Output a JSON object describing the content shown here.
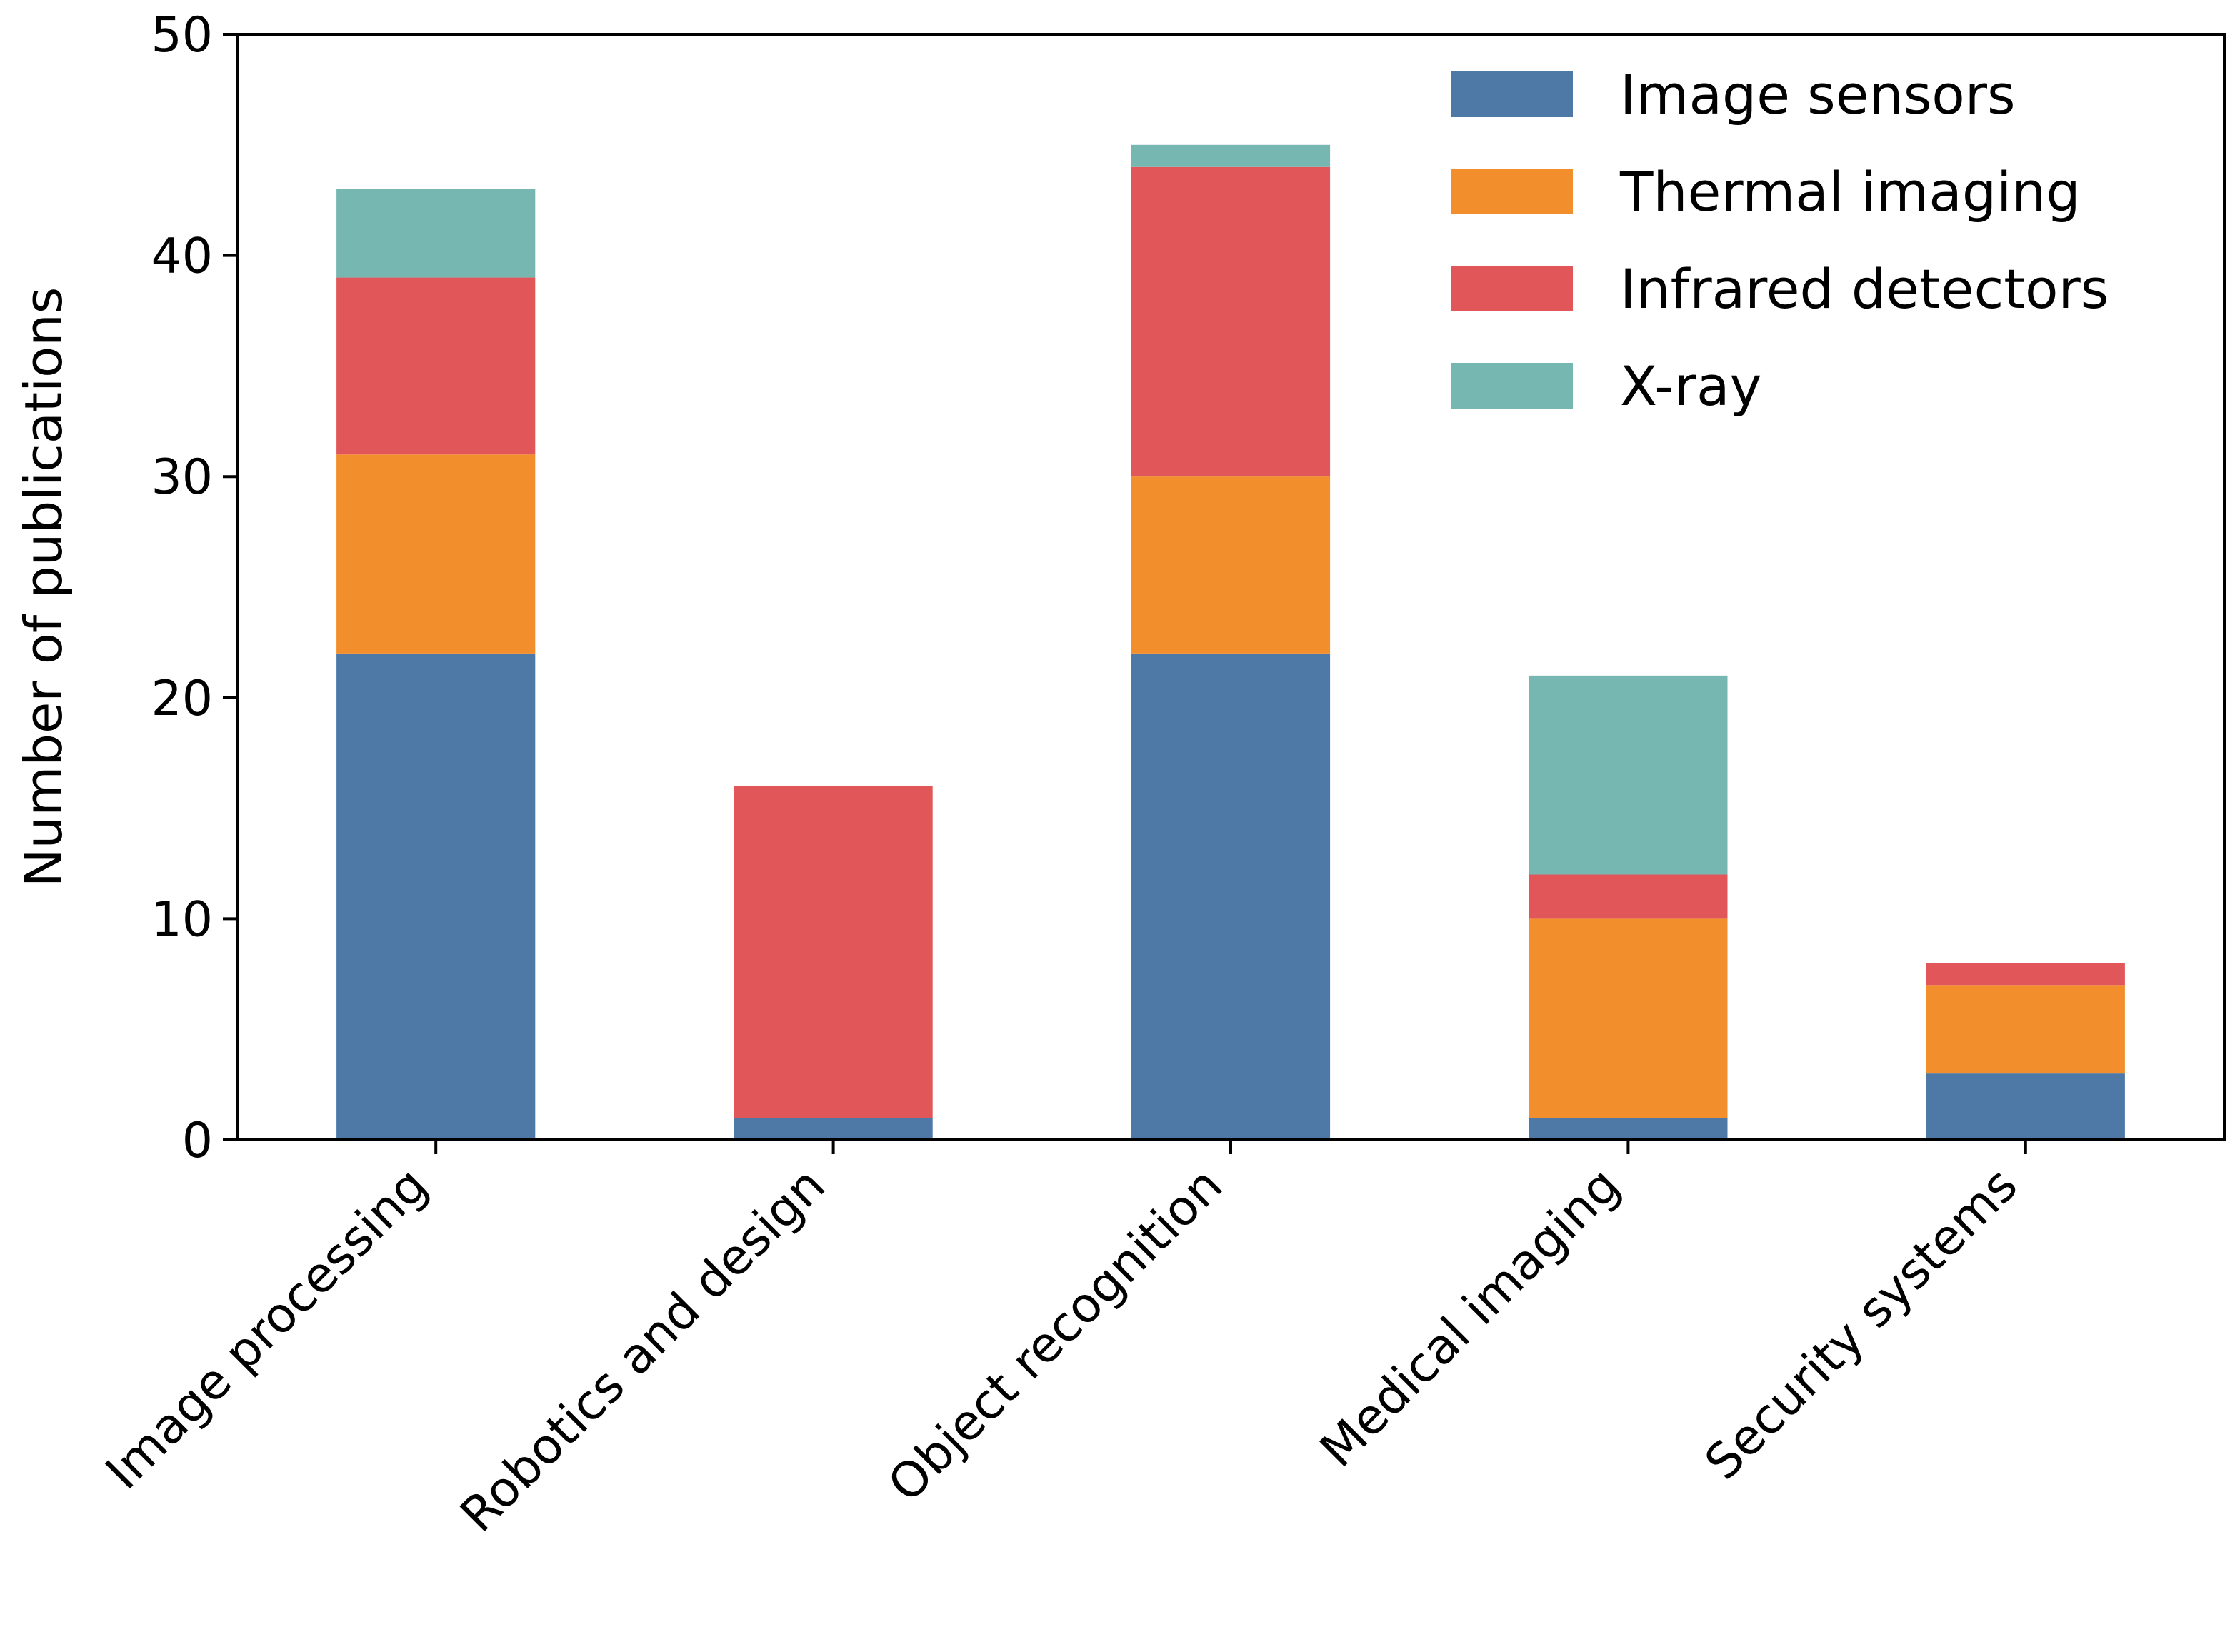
{
  "chart_data": {
    "type": "bar",
    "stacked": true,
    "title": "",
    "xlabel": "",
    "ylabel": "Number of publications",
    "ylim": [
      0,
      50
    ],
    "yticks": [
      0,
      10,
      20,
      30,
      40,
      50
    ],
    "categories": [
      "Image processing",
      "Robotics and design",
      "Object recognition",
      "Medical imaging",
      "Security systems"
    ],
    "series": [
      {
        "name": "Image sensors",
        "color": "#4e79a7",
        "values": [
          22,
          1,
          22,
          1,
          3
        ]
      },
      {
        "name": "Thermal imaging",
        "color": "#f28e2b",
        "values": [
          9,
          0,
          8,
          9,
          4
        ]
      },
      {
        "name": "Infrared detectors",
        "color": "#e15759",
        "values": [
          8,
          15,
          14,
          2,
          1
        ]
      },
      {
        "name": "X-ray",
        "color": "#76b7b2",
        "values": [
          4,
          0,
          1,
          9,
          0
        ]
      }
    ],
    "grid": false,
    "legend_position": "top-right"
  }
}
